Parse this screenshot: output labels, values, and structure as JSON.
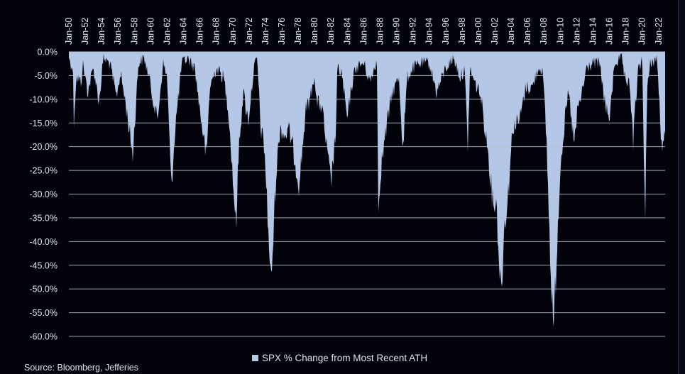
{
  "chart_data": {
    "type": "area",
    "title": "",
    "xlabel": "",
    "ylabel": "",
    "legend": {
      "label": "SPX % Change from Most Recent ATH",
      "placement": "bottom-center"
    },
    "source": "Source: Bloomberg, Jefferies",
    "ylim": [
      -60,
      0
    ],
    "y_ticks": [
      "0.0%",
      "-5.0%",
      "-10.0%",
      "-15.0%",
      "-20.0%",
      "-25.0%",
      "-30.0%",
      "-35.0%",
      "-40.0%",
      "-45.0%",
      "-50.0%",
      "-55.0%",
      "-60.0%"
    ],
    "y_tick_values": [
      0,
      -5,
      -10,
      -15,
      -20,
      -25,
      -30,
      -35,
      -40,
      -45,
      -50,
      -55,
      -60
    ],
    "x_ticks": [
      "Jan-50",
      "Jan-52",
      "Jan-54",
      "Jan-56",
      "Jan-58",
      "Jan-60",
      "Jan-62",
      "Jan-64",
      "Jan-66",
      "Jan-68",
      "Jan-70",
      "Jan-72",
      "Jan-74",
      "Jan-76",
      "Jan-78",
      "Jan-80",
      "Jan-82",
      "Jan-84",
      "Jan-86",
      "Jan-88",
      "Jan-90",
      "Jan-92",
      "Jan-94",
      "Jan-96",
      "Jan-98",
      "Jan-00",
      "Jan-02",
      "Jan-04",
      "Jan-06",
      "Jan-08",
      "Jan-10",
      "Jan-12",
      "Jan-14",
      "Jan-16",
      "Jan-18",
      "Jan-20",
      "Jan-22"
    ],
    "x_tick_values": [
      1950,
      1952,
      1954,
      1956,
      1958,
      1960,
      1962,
      1964,
      1966,
      1968,
      1970,
      1972,
      1974,
      1976,
      1978,
      1980,
      1982,
      1984,
      1986,
      1988,
      1990,
      1992,
      1994,
      1996,
      1998,
      2000,
      2002,
      2004,
      2006,
      2008,
      2010,
      2012,
      2014,
      2016,
      2018,
      2020,
      2022
    ],
    "xlim": [
      1950,
      2022.8
    ],
    "grid": "horizontal",
    "series": [
      {
        "name": "SPX % Change from Most Recent ATH",
        "color": "#b4c7e7",
        "x": [
          1950.0,
          1950.5,
          1950.6,
          1950.9,
          1951.5,
          1951.7,
          1952.3,
          1953.0,
          1953.7,
          1954.2,
          1955.0,
          1955.8,
          1956.3,
          1956.9,
          1957.8,
          1958.5,
          1959.2,
          1959.8,
          1960.8,
          1961.5,
          1962.0,
          1962.5,
          1963.0,
          1963.8,
          1964.5,
          1965.4,
          1965.8,
          1966.8,
          1967.2,
          1968.0,
          1968.9,
          1969.5,
          1970.0,
          1970.4,
          1970.8,
          1971.3,
          1971.9,
          1972.6,
          1973.0,
          1973.4,
          1973.9,
          1974.3,
          1974.7,
          1974.9,
          1975.3,
          1975.8,
          1976.3,
          1976.9,
          1977.5,
          1978.1,
          1978.4,
          1978.9,
          1979.5,
          1980.0,
          1980.2,
          1980.9,
          1981.5,
          1982.0,
          1982.6,
          1982.8,
          1983.3,
          1984.0,
          1984.5,
          1985.0,
          1986.0,
          1986.8,
          1987.6,
          1987.8,
          1988.0,
          1988.8,
          1989.5,
          1990.3,
          1990.8,
          1991.3,
          1992.0,
          1993.0,
          1994.0,
          1994.9,
          1996.0,
          1997.0,
          1997.8,
          1998.3,
          1998.7,
          1999.0,
          1999.5,
          2000.2,
          2000.7,
          2001.3,
          2001.7,
          2002.2,
          2002.6,
          2002.8,
          2003.2,
          2003.6,
          2004.2,
          2005.0,
          2005.8,
          2006.6,
          2007.3,
          2007.8,
          2008.3,
          2008.8,
          2009.2,
          2009.6,
          2010.0,
          2010.5,
          2011.0,
          2011.7,
          2012.1,
          2012.8,
          2013.2,
          2014.0,
          2014.8,
          2015.6,
          2016.1,
          2016.6,
          2017.5,
          2018.1,
          2018.4,
          2018.9,
          2019.1,
          2019.5,
          2020.0,
          2020.2,
          2020.35,
          2020.6,
          2021.0,
          2021.8,
          2022.0,
          2022.45,
          2022.8
        ],
        "y": [
          -1,
          -3,
          -14,
          -5,
          -6,
          -2,
          -8,
          -3,
          -10,
          -1,
          -2,
          -9,
          -4,
          -10,
          -21,
          -2,
          -1,
          -5,
          -14,
          -2,
          -5,
          -28,
          -15,
          -2,
          -1,
          -3,
          -9,
          -22,
          -7,
          -3,
          -5,
          -12,
          -25,
          -36,
          -18,
          -8,
          -14,
          -3,
          -1,
          -15,
          -20,
          -35,
          -48,
          -40,
          -25,
          -15,
          -17,
          -16,
          -21,
          -27,
          -22,
          -12,
          -9,
          -4,
          -10,
          -11,
          -20,
          -27,
          -16,
          -3,
          -4,
          -14,
          -7,
          -3,
          -2,
          -6,
          -1,
          -33,
          -25,
          -15,
          -8,
          -5,
          -20,
          -5,
          -3,
          -2,
          -2,
          -8,
          -3,
          -1,
          -5,
          -3,
          -19,
          -3,
          -6,
          -8,
          -14,
          -22,
          -30,
          -31,
          -45,
          -49,
          -35,
          -30,
          -15,
          -14,
          -7,
          -7,
          -3,
          -3,
          -17,
          -44,
          -57,
          -40,
          -23,
          -15,
          -8,
          -19,
          -12,
          -7,
          -3,
          -2,
          -2,
          -12,
          -13,
          -2,
          -1,
          -8,
          -4,
          -19,
          -12,
          -4,
          -1,
          -20,
          -34,
          -8,
          -2,
          -1,
          -7,
          -22,
          -15
        ]
      }
    ]
  }
}
